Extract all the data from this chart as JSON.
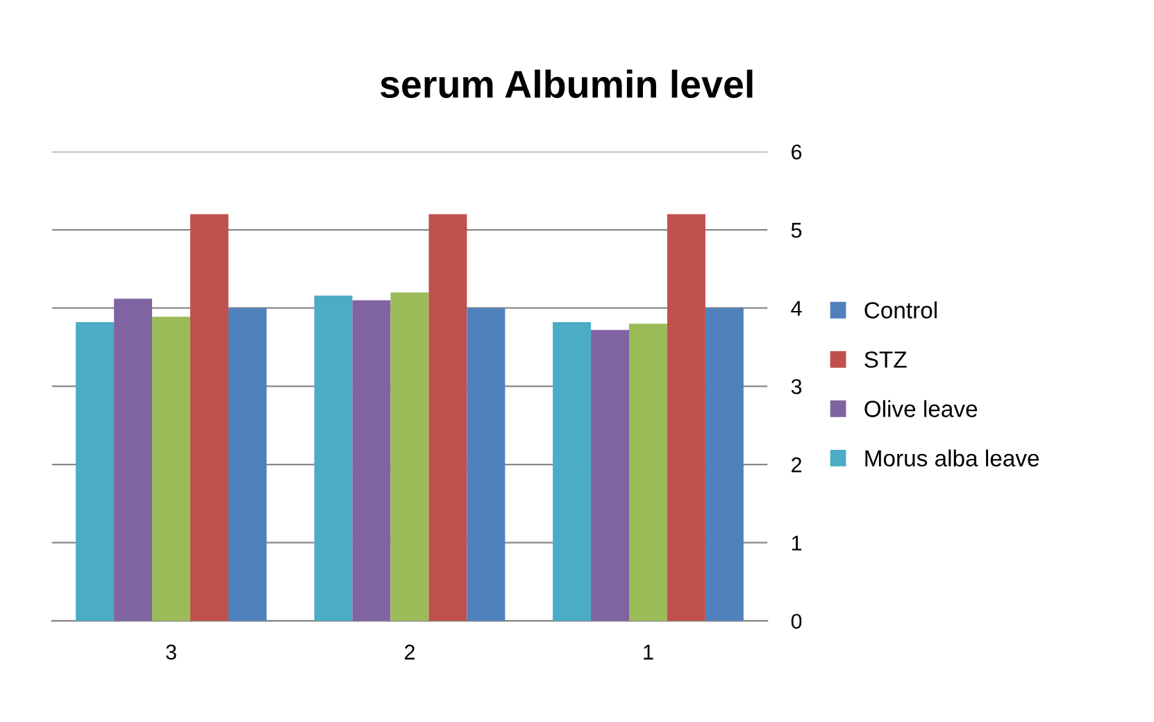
{
  "chart_data": {
    "type": "bar",
    "title": "serum Albumin level",
    "categories": [
      "3",
      "2",
      "1"
    ],
    "series": [
      {
        "name": "Morus alba leave",
        "color": "#4bacc6",
        "values": [
          3.82,
          4.16,
          3.82
        ]
      },
      {
        "name": "Olive leave",
        "color": "#8064a2",
        "values": [
          4.12,
          4.1,
          3.72
        ]
      },
      {
        "color": "#9bbb59",
        "values": [
          3.89,
          4.2,
          3.8
        ]
      },
      {
        "name": "STZ",
        "color": "#c0504d",
        "values": [
          5.2,
          5.2,
          5.2
        ]
      },
      {
        "name": "Control",
        "color": "#4f81bd",
        "values": [
          4.0,
          4.0,
          4.0
        ]
      }
    ],
    "ylim": [
      0,
      6
    ],
    "yticks": [
      0,
      1,
      2,
      3,
      4,
      5,
      6
    ],
    "grid": "y",
    "legend": "right"
  }
}
